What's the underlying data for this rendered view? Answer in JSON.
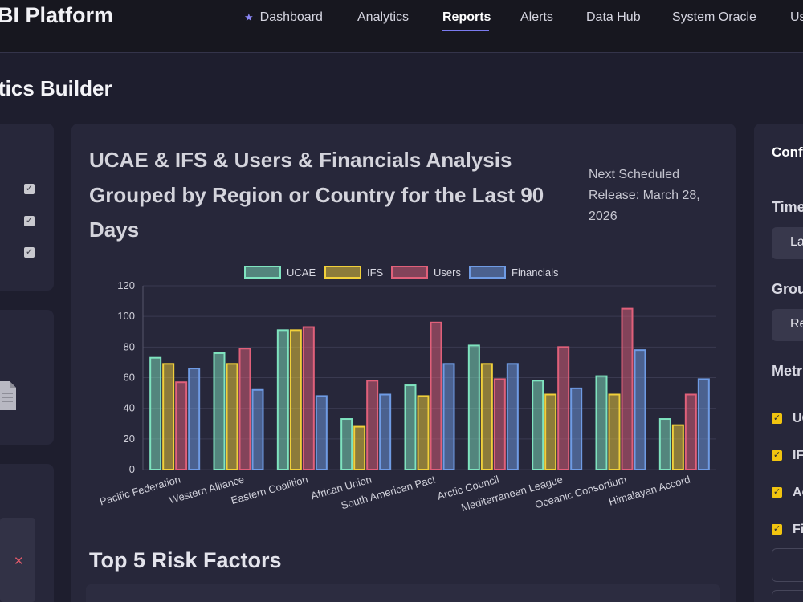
{
  "app": {
    "brand": "BI Platform"
  },
  "nav": {
    "items": [
      "Dashboard",
      "Analytics",
      "Reports",
      "Alerts",
      "Data Hub",
      "System Oracle",
      "Us"
    ],
    "active": "Reports"
  },
  "page": {
    "title": "tics Builder"
  },
  "main": {
    "chart_title": "UCAE & IFS & Users & Financials Analysis Grouped by Region or Country for the Last 90 Days",
    "release_note": "Next Scheduled Release: March 28, 2026",
    "section_title": "Top 5 Risk Factors"
  },
  "config": {
    "title": "Conf",
    "time_label": "Time",
    "time_value": "La",
    "group_label": "Grou",
    "group_value": "Re",
    "metrics_label": "Metr",
    "metrics": [
      "UC",
      "IF",
      "Ac",
      "Fi"
    ]
  },
  "colors": {
    "UCAE": "#7fe3bf",
    "IFS": "#f1d03a",
    "Users": "#e0607a",
    "Financials": "#6f9be4",
    "accent": "#7b7bf0"
  },
  "chart_data": {
    "type": "bar",
    "categories": [
      "Pacific Federation",
      "Western Alliance",
      "Eastern Coalition",
      "African Union",
      "South American Pact",
      "Arctic Council",
      "Mediterranean League",
      "Oceanic Consortium",
      "Himalayan Accord"
    ],
    "series": [
      {
        "name": "UCAE",
        "values": [
          73,
          76,
          91,
          33,
          55,
          81,
          58,
          61,
          33
        ]
      },
      {
        "name": "IFS",
        "values": [
          69,
          69,
          91,
          28,
          48,
          69,
          49,
          49,
          29
        ]
      },
      {
        "name": "Users",
        "values": [
          57,
          79,
          93,
          58,
          96,
          59,
          80,
          105,
          49
        ]
      },
      {
        "name": "Financials",
        "values": [
          66,
          52,
          48,
          49,
          69,
          69,
          53,
          78,
          59
        ]
      }
    ],
    "ylim": [
      0,
      120
    ],
    "yticks": [
      "0",
      "20",
      "40",
      "60",
      "80",
      "100",
      "120"
    ],
    "legend": "top",
    "grid": true
  }
}
